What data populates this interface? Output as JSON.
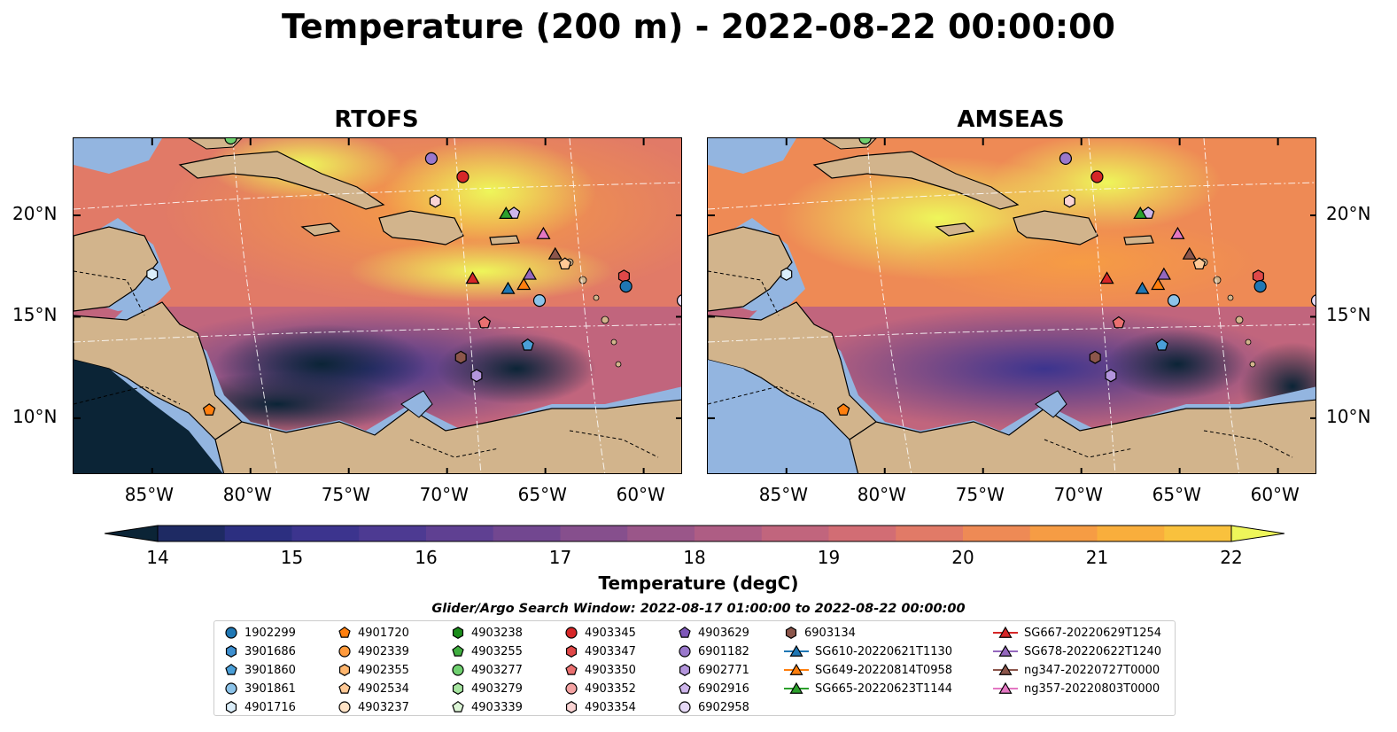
{
  "title": "Temperature (200 m) - 2022-08-22 00:00:00",
  "panels": [
    {
      "id": "rtofs",
      "title": "RTOFS"
    },
    {
      "id": "amseas",
      "title": "AMSEAS"
    }
  ],
  "lat_ticks": [
    "20°N",
    "15°N",
    "10°N"
  ],
  "lon_ticks": [
    "85°W",
    "80°W",
    "75°W",
    "70°W",
    "65°W",
    "60°W"
  ],
  "colorbar": {
    "label": "Temperature (degC)",
    "ticks": [
      "14",
      "15",
      "16",
      "17",
      "18",
      "19",
      "20",
      "21",
      "22"
    ],
    "colors": [
      "#0b2436",
      "#13213f",
      "#1e2a63",
      "#2c2f80",
      "#3c348e",
      "#4d3a92",
      "#5f4092",
      "#724790",
      "#864f8d",
      "#9a5689",
      "#ae5d84",
      "#c1657d",
      "#d26d74",
      "#e17a67",
      "#ee8a55",
      "#f69c44",
      "#f9ae3c",
      "#f9c13d",
      "#f5d546",
      "#eef65a"
    ]
  },
  "legend": {
    "title": "Glider/Argo Search Window: 2022-08-17 01:00:00 to 2022-08-22 00:00:00",
    "items": [
      {
        "label": "1902299",
        "marker": "circle",
        "color": "#1f77b4"
      },
      {
        "label": "3901686",
        "marker": "hexagon",
        "color": "#3d8fcf"
      },
      {
        "label": "3901860",
        "marker": "pentagon",
        "color": "#4a9fd8"
      },
      {
        "label": "3901861",
        "marker": "circle",
        "color": "#8cc3e9"
      },
      {
        "label": "4901716",
        "marker": "hexagon",
        "color": "#dbeefa"
      },
      {
        "label": "4901720",
        "marker": "pentagon",
        "color": "#ff7f0e"
      },
      {
        "label": "4902339",
        "marker": "circle",
        "color": "#ff9a3c"
      },
      {
        "label": "4902355",
        "marker": "hexagon",
        "color": "#ffb66e"
      },
      {
        "label": "4902534",
        "marker": "pentagon",
        "color": "#ffc996"
      },
      {
        "label": "4903237",
        "marker": "circle",
        "color": "#ffe3c6"
      },
      {
        "label": "4903238",
        "marker": "hexagon",
        "color": "#1a8c1a"
      },
      {
        "label": "4903255",
        "marker": "pentagon",
        "color": "#3fae3f"
      },
      {
        "label": "4903277",
        "marker": "circle",
        "color": "#6fd06f"
      },
      {
        "label": "4903279",
        "marker": "hexagon",
        "color": "#a6e5a0"
      },
      {
        "label": "4903339",
        "marker": "pentagon",
        "color": "#dcf5d6"
      },
      {
        "label": "4903345",
        "marker": "circle",
        "color": "#d62728"
      },
      {
        "label": "4903347",
        "marker": "hexagon",
        "color": "#e04848"
      },
      {
        "label": "4903350",
        "marker": "pentagon",
        "color": "#ea7070"
      },
      {
        "label": "4903352",
        "marker": "circle",
        "color": "#f4a3a3"
      },
      {
        "label": "4903354",
        "marker": "hexagon",
        "color": "#fad3d3"
      },
      {
        "label": "4903629",
        "marker": "pentagon",
        "color": "#7e57b8"
      },
      {
        "label": "6901182",
        "marker": "circle",
        "color": "#9a78cc"
      },
      {
        "label": "6902771",
        "marker": "hexagon",
        "color": "#b395dc"
      },
      {
        "label": "6902916",
        "marker": "pentagon",
        "color": "#cdb5ea"
      },
      {
        "label": "6902958",
        "marker": "circle",
        "color": "#e6d9f6"
      },
      {
        "label": "6903134",
        "marker": "hexagon",
        "color": "#8c564b"
      },
      {
        "label": "SG610-20220621T1130",
        "marker": "triangle",
        "color": "#1f77b4"
      },
      {
        "label": "SG649-20220814T0958",
        "marker": "triangle",
        "color": "#ff7f0e"
      },
      {
        "label": "SG665-20220623T1144",
        "marker": "triangle",
        "color": "#2ca02c"
      },
      {
        "label": "SG667-20220629T1254",
        "marker": "triangle",
        "color": "#d62728"
      },
      {
        "label": "SG678-20220622T1240",
        "marker": "triangle",
        "color": "#9467bd"
      },
      {
        "label": "ng347-20220727T0000",
        "marker": "triangle",
        "color": "#8c564b"
      },
      {
        "label": "ng357-20220803T0000",
        "marker": "triangle",
        "color": "#e377c2"
      }
    ]
  },
  "map_markers": [
    {
      "lon": -81.0,
      "lat": 23.8,
      "marker": "circle",
      "color": "#6fd06f"
    },
    {
      "lon": -70.8,
      "lat": 22.8,
      "marker": "circle",
      "color": "#9a78cc"
    },
    {
      "lon": -69.2,
      "lat": 21.9,
      "marker": "circle",
      "color": "#d62728"
    },
    {
      "lon": -70.6,
      "lat": 20.7,
      "marker": "hexagon",
      "color": "#fad3d3"
    },
    {
      "lon": -66.6,
      "lat": 20.1,
      "marker": "pentagon",
      "color": "#cdb5ea"
    },
    {
      "lon": -67.0,
      "lat": 20.1,
      "marker": "triangle",
      "color": "#2ca02c"
    },
    {
      "lon": -65.1,
      "lat": 19.1,
      "marker": "triangle",
      "color": "#e377c2"
    },
    {
      "lon": -64.5,
      "lat": 18.1,
      "marker": "triangle",
      "color": "#8c564b"
    },
    {
      "lon": -64.0,
      "lat": 17.6,
      "marker": "pentagon",
      "color": "#ffc996"
    },
    {
      "lon": -65.8,
      "lat": 17.1,
      "marker": "triangle",
      "color": "#9467bd"
    },
    {
      "lon": -68.7,
      "lat": 16.9,
      "marker": "triangle",
      "color": "#d62728"
    },
    {
      "lon": -66.1,
      "lat": 16.6,
      "marker": "triangle",
      "color": "#ff7f0e"
    },
    {
      "lon": -66.9,
      "lat": 16.4,
      "marker": "triangle",
      "color": "#1f77b4"
    },
    {
      "lon": -61.0,
      "lat": 17.0,
      "marker": "hexagon",
      "color": "#e04848"
    },
    {
      "lon": -60.9,
      "lat": 16.5,
      "marker": "circle",
      "color": "#1f77b4"
    },
    {
      "lon": -65.3,
      "lat": 15.8,
      "marker": "circle",
      "color": "#8cc3e9"
    },
    {
      "lon": -58.0,
      "lat": 15.8,
      "marker": "circle",
      "color": "#e6d9f6"
    },
    {
      "lon": -68.1,
      "lat": 14.7,
      "marker": "pentagon",
      "color": "#ea7070"
    },
    {
      "lon": -65.9,
      "lat": 13.6,
      "marker": "pentagon",
      "color": "#4a9fd8"
    },
    {
      "lon": -69.3,
      "lat": 13.0,
      "marker": "hexagon",
      "color": "#8c564b"
    },
    {
      "lon": -68.5,
      "lat": 12.1,
      "marker": "hexagon",
      "color": "#b395dc"
    },
    {
      "lon": -85.0,
      "lat": 17.1,
      "marker": "hexagon",
      "color": "#dbeefa"
    },
    {
      "lon": -82.1,
      "lat": 10.4,
      "marker": "pentagon",
      "color": "#ff7f0e"
    }
  ]
}
